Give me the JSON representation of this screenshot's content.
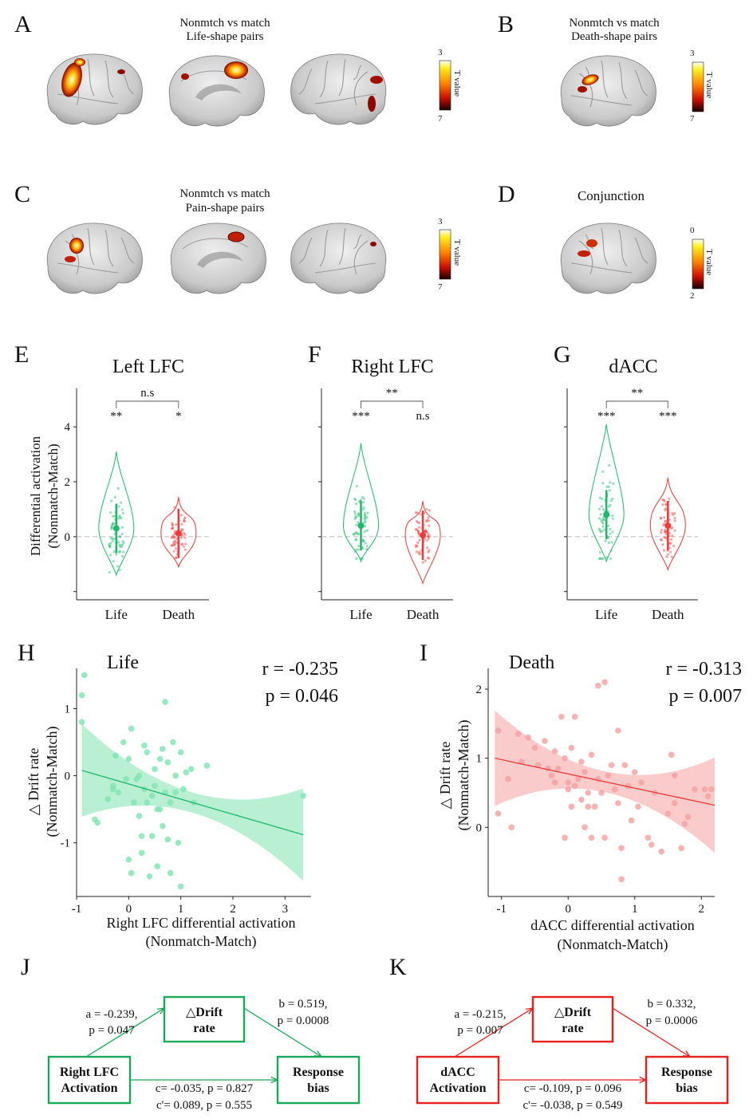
{
  "panels": {
    "A": {
      "label": "A",
      "title1": "Nonmtch vs match",
      "title2": "Life-shape pairs",
      "cb_top": "3",
      "cb_bottom": "7",
      "cb_label": "T value"
    },
    "B": {
      "label": "B",
      "title1": "Nonmtch vs match",
      "title2": "Death-shape pairs",
      "cb_top": "3",
      "cb_bottom": "7",
      "cb_label": "T value"
    },
    "C": {
      "label": "C",
      "title1": "Nonmtch vs match",
      "title2": "Pain-shape pairs",
      "cb_top": "3",
      "cb_bottom": "7",
      "cb_label": "T value"
    },
    "D": {
      "label": "D",
      "title1": "Conjunction",
      "cb_top": "0",
      "cb_bottom": "2",
      "cb_label": "T value"
    }
  },
  "colors": {
    "life": "#1db86a",
    "death": "#ee3a3a",
    "life_fill": "#7fe3b0",
    "death_fill": "#f5a0a0"
  },
  "violin": {
    "ylabel1": "Differential activation",
    "ylabel2": "(Nonmatch-Match)",
    "yticks": [
      "4",
      "2",
      "0"
    ],
    "categories": [
      "Life",
      "Death"
    ],
    "E": {
      "label": "E",
      "title": "Left LFC",
      "bracket": "n.s",
      "sig_life": "**",
      "sig_death": "*"
    },
    "F": {
      "label": "F",
      "title": "Right LFC",
      "bracket": "**",
      "sig_life": "***",
      "sig_death": "n.s"
    },
    "G": {
      "label": "G",
      "title": "dACC",
      "bracket": "**",
      "sig_life": "***",
      "sig_death": "***"
    }
  },
  "scatter": {
    "H": {
      "label": "H",
      "title": "Life",
      "r": "r = -0.235",
      "p": "p = 0.046",
      "ylabel1": "△ Drift rate",
      "ylabel2": "(Nonmatch-Match)",
      "xlabel1": "Right LFC differential activation",
      "xlabel2": "(Nonmatch-Match)",
      "xticks": [
        "-1",
        "0",
        "1",
        "2",
        "3"
      ],
      "yticks": [
        "1",
        "0",
        "-1"
      ]
    },
    "I": {
      "label": "I",
      "title": "Death",
      "r": "r = -0.313",
      "p": "p = 0.007",
      "ylabel1": "△ Drift rate",
      "ylabel2": "(Nonmatch-Match)",
      "xlabel1": "dACC differential activation",
      "xlabel2": "(Nonmatch-Match)",
      "xticks": [
        "-1",
        "0",
        "1",
        "2"
      ],
      "yticks": [
        "2",
        "1",
        "0"
      ]
    }
  },
  "mediation": {
    "J": {
      "label": "J",
      "x1": "Right LFC",
      "x2": "Activation",
      "m1": "△Drift",
      "m2": "rate",
      "y1": "Response",
      "y2": "bias",
      "a1": "a = -0.239,",
      "a2": "p = 0.047",
      "b1": "b = 0.519,",
      "b2": "p = 0.0008",
      "c1": "c= -0.035, p = 0.827",
      "c2": "c'= 0.089, p = 0.555"
    },
    "K": {
      "label": "K",
      "x1": "dACC",
      "x2": "Activation",
      "m1": "△Drift",
      "m2": "rate",
      "y1": "Response",
      "y2": "bias",
      "a1": "a = -0.215,",
      "a2": "p = 0.007",
      "b1": "b = 0.332,",
      "b2": "p = 0.0006",
      "c1": "c= -0.109, p = 0.096",
      "c2": "c'= -0.038, p = 0.549"
    }
  },
  "chart_data": [
    {
      "type": "scatter",
      "title": "Life",
      "xlabel": "Right LFC differential activation (Nonmatch-Match)",
      "ylabel": "△ Drift rate (Nonmatch-Match)",
      "xlim": [
        -1,
        3.5
      ],
      "ylim": [
        -1.8,
        1.6
      ],
      "points": [
        [
          -0.85,
          1.5
        ],
        [
          -0.9,
          1.2
        ],
        [
          -0.9,
          0.8
        ],
        [
          -0.65,
          -0.65
        ],
        [
          -0.6,
          -0.7
        ],
        [
          -0.4,
          -0.35
        ],
        [
          -0.3,
          -0.15
        ],
        [
          -0.3,
          -0.2
        ],
        [
          -0.25,
          0.3
        ],
        [
          -0.2,
          -0.25
        ],
        [
          -0.1,
          0.5
        ],
        [
          -0.05,
          -0.05
        ],
        [
          0.0,
          0.25
        ],
        [
          0.0,
          -1.25
        ],
        [
          0.05,
          0.7
        ],
        [
          0.05,
          -1.45
        ],
        [
          0.1,
          -0.4
        ],
        [
          0.15,
          -0.05
        ],
        [
          0.2,
          0.0
        ],
        [
          0.2,
          -0.6
        ],
        [
          0.25,
          -0.9
        ],
        [
          0.25,
          -1.15
        ],
        [
          0.3,
          0.45
        ],
        [
          0.3,
          -0.2
        ],
        [
          0.35,
          0.35
        ],
        [
          0.35,
          -0.4
        ],
        [
          0.4,
          -1.5
        ],
        [
          0.45,
          -0.3
        ],
        [
          0.45,
          -0.9
        ],
        [
          0.5,
          0.1
        ],
        [
          0.5,
          -0.15
        ],
        [
          0.55,
          -0.5
        ],
        [
          0.55,
          -1.35
        ],
        [
          0.6,
          0.25
        ],
        [
          0.6,
          -0.5
        ],
        [
          0.65,
          0.4
        ],
        [
          0.65,
          -0.75
        ],
        [
          0.7,
          1.1
        ],
        [
          0.7,
          -0.25
        ],
        [
          0.75,
          0.2
        ],
        [
          0.75,
          -0.95
        ],
        [
          0.8,
          -0.4
        ],
        [
          0.8,
          -1.45
        ],
        [
          0.85,
          0.5
        ],
        [
          0.9,
          0.0
        ],
        [
          0.9,
          -0.25
        ],
        [
          0.95,
          -1.0
        ],
        [
          1.0,
          0.35
        ],
        [
          1.0,
          -1.65
        ],
        [
          1.05,
          -0.2
        ],
        [
          1.1,
          0.05
        ],
        [
          1.2,
          0.1
        ],
        [
          1.25,
          -0.4
        ],
        [
          1.5,
          0.15
        ],
        [
          3.35,
          -0.3
        ]
      ],
      "fit": {
        "x": [
          -0.9,
          3.35
        ],
        "y": [
          0.08,
          -0.88
        ]
      }
    },
    {
      "type": "scatter",
      "title": "Death",
      "xlabel": "dACC differential activation (Nonmatch-Match)",
      "ylabel": "△ Drift rate (Nonmatch-Match)",
      "xlim": [
        -1.2,
        2.2
      ],
      "ylim": [
        -1.0,
        2.3
      ],
      "points": [
        [
          -1.05,
          1.4
        ],
        [
          -1.05,
          0.2
        ],
        [
          -0.9,
          0.7
        ],
        [
          -0.85,
          0.0
        ],
        [
          -0.75,
          1.35
        ],
        [
          -0.7,
          0.95
        ],
        [
          -0.6,
          1.3
        ],
        [
          -0.5,
          1.15
        ],
        [
          -0.45,
          0.9
        ],
        [
          -0.35,
          1.25
        ],
        [
          -0.3,
          0.85
        ],
        [
          -0.25,
          0.75
        ],
        [
          -0.2,
          0.65
        ],
        [
          -0.2,
          1.1
        ],
        [
          -0.15,
          0.85
        ],
        [
          -0.1,
          1.6
        ],
        [
          -0.05,
          -0.15
        ],
        [
          -0.05,
          1.0
        ],
        [
          0.0,
          0.65
        ],
        [
          0.0,
          0.55
        ],
        [
          0.05,
          1.15
        ],
        [
          0.05,
          0.3
        ],
        [
          0.1,
          0.6
        ],
        [
          0.1,
          1.6
        ],
        [
          0.15,
          0.7
        ],
        [
          0.2,
          0.95
        ],
        [
          0.2,
          0.4
        ],
        [
          0.25,
          0.8
        ],
        [
          0.25,
          0.0
        ],
        [
          0.3,
          0.5
        ],
        [
          0.3,
          0.3
        ],
        [
          0.35,
          1.05
        ],
        [
          0.35,
          -0.15
        ],
        [
          0.4,
          0.3
        ],
        [
          0.45,
          0.7
        ],
        [
          0.45,
          2.05
        ],
        [
          0.5,
          0.5
        ],
        [
          0.55,
          2.1
        ],
        [
          0.55,
          -0.15
        ],
        [
          0.6,
          0.75
        ],
        [
          0.65,
          0.9
        ],
        [
          0.7,
          0.55
        ],
        [
          0.75,
          0.35
        ],
        [
          0.75,
          1.4
        ],
        [
          0.8,
          -0.3
        ],
        [
          0.8,
          -0.75
        ],
        [
          0.85,
          0.9
        ],
        [
          0.9,
          0.6
        ],
        [
          0.95,
          0.1
        ],
        [
          1.0,
          0.8
        ],
        [
          1.05,
          0.3
        ],
        [
          1.1,
          0.65
        ],
        [
          1.2,
          -0.15
        ],
        [
          1.25,
          -0.25
        ],
        [
          1.3,
          0.5
        ],
        [
          1.4,
          -0.35
        ],
        [
          1.5,
          0.2
        ],
        [
          1.55,
          1.05
        ],
        [
          1.6,
          0.35
        ],
        [
          1.6,
          0.75
        ],
        [
          1.7,
          -0.3
        ],
        [
          1.75,
          0.05
        ],
        [
          1.8,
          0.15
        ],
        [
          1.9,
          0.55
        ],
        [
          2.05,
          0.55
        ],
        [
          2.1,
          0.45
        ],
        [
          2.15,
          0.55
        ]
      ],
      "fit": {
        "x": [
          -1.1,
          2.2
        ],
        "y": [
          1.0,
          0.32
        ]
      }
    }
  ]
}
